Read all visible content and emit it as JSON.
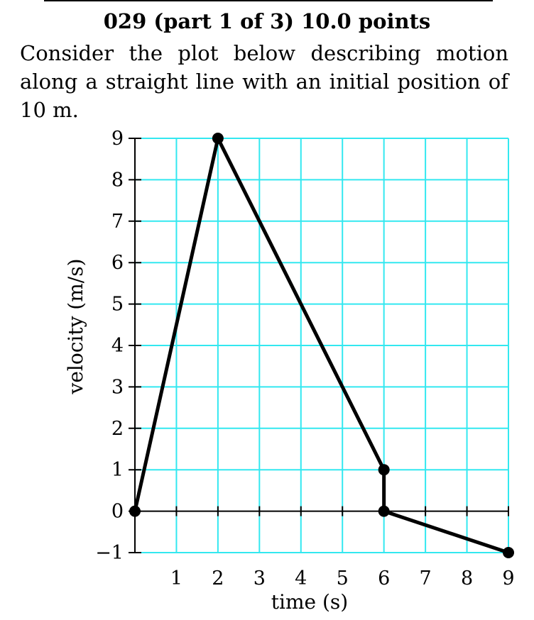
{
  "header": "029 (part 1 of 3) 10.0 points",
  "body_text": "Consider the plot below describing motion along a straight line with an initial position of 10 m.",
  "chart_data": {
    "type": "line",
    "title": "",
    "xlabel": "time (s)",
    "ylabel": "velocity (m/s)",
    "xlim": [
      0,
      9
    ],
    "ylim": [
      -1,
      9
    ],
    "x_ticks": [
      "1",
      "2",
      "3",
      "4",
      "5",
      "6",
      "7",
      "8",
      "9"
    ],
    "y_ticks": [
      "−1",
      "0",
      "1",
      "2",
      "3",
      "4",
      "5",
      "6",
      "7",
      "8",
      "9"
    ],
    "grid": true,
    "grid_color": "#33e8f0",
    "line_color": "#000000",
    "series": [
      {
        "x": [
          0,
          2,
          6,
          6,
          9
        ],
        "y": [
          0,
          9,
          1,
          0,
          -1
        ]
      }
    ]
  }
}
